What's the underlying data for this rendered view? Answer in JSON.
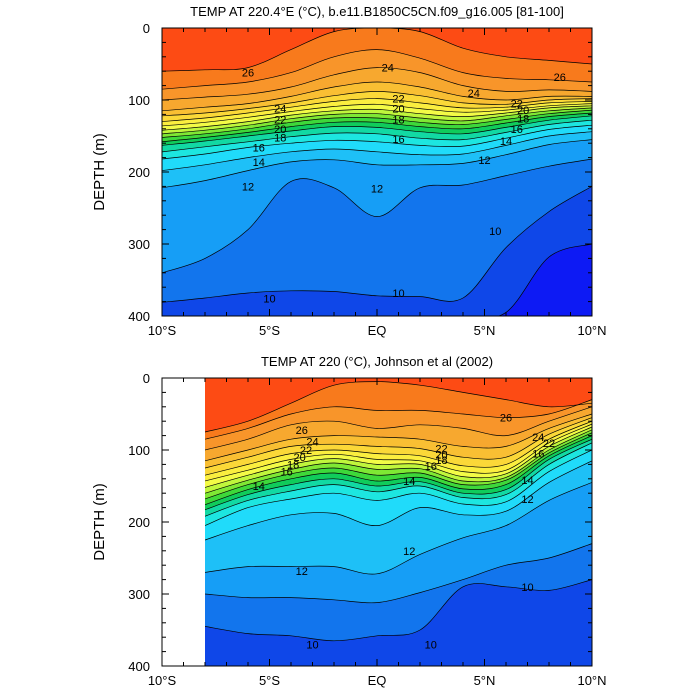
{
  "chart_data": [
    {
      "type": "contour",
      "title": "TEMP AT 220.4°E (°C), b.e11.B1850C5CN.f09_g16.005 [81-100]",
      "xlabel": "",
      "ylabel": "DEPTH (m)",
      "xlim": [
        -10,
        10
      ],
      "ylim": [
        400,
        0
      ],
      "data_xlim": [
        -10,
        10
      ],
      "x_ticks": [
        {
          "value": -10,
          "label": "10°S"
        },
        {
          "value": -5,
          "label": "5°S"
        },
        {
          "value": 0,
          "label": "EQ"
        },
        {
          "value": 5,
          "label": "5°N"
        },
        {
          "value": 10,
          "label": "10°N"
        }
      ],
      "y_ticks": [
        {
          "value": 0,
          "label": "0"
        },
        {
          "value": 100,
          "label": "100"
        },
        {
          "value": 200,
          "label": "200"
        },
        {
          "value": 300,
          "label": "300"
        },
        {
          "value": 400,
          "label": "400"
        }
      ],
      "isotherm_depths": {
        "lats": [
          -10,
          -8,
          -6,
          -4,
          -2,
          0,
          2,
          4,
          6,
          8,
          10
        ],
        "levels": [
          {
            "value": 27,
            "depth": [
              60,
              58,
              55,
              30,
              5,
              0,
              5,
              28,
              40,
              45,
              50
            ]
          },
          {
            "value": 26,
            "depth": [
              85,
              80,
              75,
              62,
              40,
              30,
              42,
              62,
              70,
              72,
              75
            ]
          },
          {
            "value": 25,
            "depth": [
              100,
              96,
              92,
              82,
              65,
              55,
              62,
              80,
              88,
              86,
              88
            ]
          },
          {
            "value": 24,
            "depth": [
              115,
              110,
              105,
              95,
              82,
              75,
              82,
              95,
              100,
              95,
              95
            ]
          },
          {
            "value": 23,
            "depth": [
              122,
              118,
              112,
              104,
              94,
              88,
              94,
              104,
              106,
              100,
              98
            ]
          },
          {
            "value": 22,
            "depth": [
              130,
              125,
              118,
              110,
              102,
              98,
              104,
              111,
              110,
              104,
              102
            ]
          },
          {
            "value": 21,
            "depth": [
              136,
              131,
              124,
              116,
              109,
              106,
              112,
              117,
              114,
              108,
              105
            ]
          },
          {
            "value": 20,
            "depth": [
              142,
              137,
              130,
              121,
              115,
              113,
              119,
              123,
              118,
              111,
              108
            ]
          },
          {
            "value": 19,
            "depth": [
              147,
              142,
              135,
              126,
              120,
              119,
              125,
              129,
              122,
              115,
              111
            ]
          },
          {
            "value": 18,
            "depth": [
              152,
              147,
              140,
              131,
              125,
              125,
              131,
              134,
              127,
              119,
              114
            ]
          },
          {
            "value": 17,
            "depth": [
              158,
              152,
              145,
              137,
              131,
              131,
              137,
              140,
              132,
              123,
              118
            ]
          },
          {
            "value": 16,
            "depth": [
              163,
              157,
              150,
              143,
              137,
              138,
              144,
              147,
              138,
              128,
              122
            ]
          },
          {
            "value": 15,
            "depth": [
              172,
              165,
              158,
              151,
              146,
              147,
              153,
              155,
              145,
              134,
              128
            ]
          },
          {
            "value": 14,
            "depth": [
              182,
              175,
              166,
              160,
              156,
              158,
              163,
              164,
              153,
              141,
              135
            ]
          },
          {
            "value": 13,
            "depth": [
              198,
              190,
              180,
              172,
              168,
              172,
              176,
              175,
              163,
              150,
              144
            ]
          },
          {
            "value": 12,
            "depth": [
              222,
              212,
              198,
              186,
              183,
              190,
              190,
              188,
              176,
              162,
              155
            ]
          },
          {
            "value": 11,
            "depth": [
              340,
              320,
              280,
              213,
              222,
              262,
              222,
              218,
              205,
              192,
              182
            ]
          },
          {
            "value": 10,
            "depth": [
              381,
              375,
              368,
              365,
              366,
              372,
              373,
              375,
              305,
              255,
              220
            ]
          },
          {
            "value": 9,
            "depth": [
              400,
              400,
              400,
              400,
              400,
              400,
              400,
              400,
              395,
              318,
              300
            ]
          }
        ]
      },
      "contour_labels": [
        {
          "text": "26",
          "lat": -6.0,
          "depth": 62
        },
        {
          "text": "24",
          "lat": 0.5,
          "depth": 55
        },
        {
          "text": "24",
          "lat": 4.5,
          "depth": 90
        },
        {
          "text": "26",
          "lat": 8.5,
          "depth": 68
        },
        {
          "text": "24",
          "lat": -4.5,
          "depth": 112
        },
        {
          "text": "22",
          "lat": -4.5,
          "depth": 127
        },
        {
          "text": "20",
          "lat": -4.5,
          "depth": 140
        },
        {
          "text": "18",
          "lat": -4.5,
          "depth": 152
        },
        {
          "text": "22",
          "lat": 1.0,
          "depth": 98
        },
        {
          "text": "20",
          "lat": 1.0,
          "depth": 112
        },
        {
          "text": "18",
          "lat": 1.0,
          "depth": 127
        },
        {
          "text": "16",
          "lat": 1.0,
          "depth": 154
        },
        {
          "text": "22",
          "lat": 6.5,
          "depth": 105
        },
        {
          "text": "20",
          "lat": 6.8,
          "depth": 114
        },
        {
          "text": "18",
          "lat": 6.8,
          "depth": 126
        },
        {
          "text": "16",
          "lat": 6.5,
          "depth": 140
        },
        {
          "text": "14",
          "lat": 6.0,
          "depth": 157
        },
        {
          "text": "16",
          "lat": -5.5,
          "depth": 166
        },
        {
          "text": "14",
          "lat": -5.5,
          "depth": 186
        },
        {
          "text": "12",
          "lat": -6.0,
          "depth": 220
        },
        {
          "text": "12",
          "lat": 5.0,
          "depth": 183
        },
        {
          "text": "12",
          "lat": 0.0,
          "depth": 223
        },
        {
          "text": "10",
          "lat": 5.5,
          "depth": 282
        },
        {
          "text": "10",
          "lat": -5.0,
          "depth": 376
        },
        {
          "text": "10",
          "lat": 1.0,
          "depth": 368
        }
      ]
    },
    {
      "type": "contour",
      "title": "TEMP AT 220 (°C), Johnson et al (2002)",
      "xlabel": "",
      "ylabel": "DEPTH (m)",
      "xlim": [
        -10,
        10
      ],
      "ylim": [
        400,
        0
      ],
      "data_xlim": [
        -8,
        10
      ],
      "x_ticks": [
        {
          "value": -10,
          "label": "10°S"
        },
        {
          "value": -5,
          "label": "5°S"
        },
        {
          "value": 0,
          "label": "EQ"
        },
        {
          "value": 5,
          "label": "5°N"
        },
        {
          "value": 10,
          "label": "10°N"
        }
      ],
      "y_ticks": [
        {
          "value": 0,
          "label": "0"
        },
        {
          "value": 100,
          "label": "100"
        },
        {
          "value": 200,
          "label": "200"
        },
        {
          "value": 300,
          "label": "300"
        },
        {
          "value": 400,
          "label": "400"
        }
      ],
      "isotherm_depths": {
        "lats": [
          -8,
          -6,
          -4,
          -2,
          0,
          2,
          4,
          6,
          8,
          10
        ],
        "levels": [
          {
            "value": 27,
            "depth": [
              75,
              60,
              35,
              10,
              5,
              10,
              20,
              30,
              40,
              35
            ]
          },
          {
            "value": 26,
            "depth": [
              85,
              70,
              50,
              40,
              45,
              45,
              50,
              55,
              50,
              30
            ]
          },
          {
            "value": 25,
            "depth": [
              100,
              85,
              65,
              60,
              70,
              65,
              70,
              80,
              60,
              40
            ]
          },
          {
            "value": 24,
            "depth": [
              115,
              100,
              85,
              80,
              82,
              85,
              95,
              95,
              70,
              50
            ]
          },
          {
            "value": 23,
            "depth": [
              125,
              110,
              95,
              92,
              95,
              98,
              110,
              110,
              78,
              55
            ]
          },
          {
            "value": 22,
            "depth": [
              135,
              120,
              105,
              100,
              105,
              108,
              122,
              120,
              85,
              60
            ]
          },
          {
            "value": 21,
            "depth": [
              143,
              128,
              113,
              106,
              113,
              115,
              130,
              128,
              90,
              64
            ]
          },
          {
            "value": 20,
            "depth": [
              152,
              135,
              120,
              112,
              120,
              120,
              137,
              133,
              95,
              68
            ]
          },
          {
            "value": 19,
            "depth": [
              160,
              142,
              127,
              118,
              127,
              126,
              143,
              138,
              100,
              72
            ]
          },
          {
            "value": 18,
            "depth": [
              168,
              148,
              133,
              125,
              135,
              132,
              148,
              142,
              104,
              76
            ]
          },
          {
            "value": 17,
            "depth": [
              176,
              155,
              140,
              132,
              143,
              138,
              154,
              148,
              108,
              80
            ]
          },
          {
            "value": 16,
            "depth": [
              183,
              162,
              148,
              140,
              150,
              144,
              160,
              155,
              113,
              85
            ]
          },
          {
            "value": 15,
            "depth": [
              192,
              170,
              157,
              148,
              158,
              150,
              166,
              162,
              120,
              90
            ]
          },
          {
            "value": 14,
            "depth": [
              205,
              180,
              168,
              160,
              170,
              160,
              175,
              172,
              130,
              100
            ]
          },
          {
            "value": 13,
            "depth": [
              225,
              205,
              190,
              188,
              205,
              180,
              190,
              185,
              145,
              115
            ]
          },
          {
            "value": 12,
            "depth": [
              270,
              262,
              262,
              262,
              272,
              245,
              222,
              205,
              170,
              145
            ]
          },
          {
            "value": 11,
            "depth": [
              300,
              305,
              305,
              308,
              312,
              298,
              280,
              260,
              250,
              230
            ]
          },
          {
            "value": 10,
            "depth": [
              345,
              355,
              358,
              365,
              358,
              350,
              290,
              290,
              295,
              280
            ]
          },
          {
            "value": 9,
            "depth": [
              400,
              400,
              400,
              400,
              400,
              400,
              400,
              400,
              400,
              400
            ]
          }
        ]
      },
      "contour_labels": [
        {
          "text": "26",
          "lat": -3.5,
          "depth": 72
        },
        {
          "text": "24",
          "lat": -3.0,
          "depth": 88
        },
        {
          "text": "22",
          "lat": -3.3,
          "depth": 100
        },
        {
          "text": "20",
          "lat": -3.6,
          "depth": 110
        },
        {
          "text": "18",
          "lat": -3.9,
          "depth": 120
        },
        {
          "text": "16",
          "lat": -4.2,
          "depth": 130
        },
        {
          "text": "14",
          "lat": -5.5,
          "depth": 150
        },
        {
          "text": "26",
          "lat": 6.0,
          "depth": 55
        },
        {
          "text": "22",
          "lat": 3.0,
          "depth": 98
        },
        {
          "text": "20",
          "lat": 3.0,
          "depth": 106
        },
        {
          "text": "18",
          "lat": 3.0,
          "depth": 114
        },
        {
          "text": "16",
          "lat": 2.5,
          "depth": 122
        },
        {
          "text": "14",
          "lat": 1.5,
          "depth": 143
        },
        {
          "text": "24",
          "lat": 7.5,
          "depth": 82
        },
        {
          "text": "22",
          "lat": 8.0,
          "depth": 90
        },
        {
          "text": "16",
          "lat": 7.5,
          "depth": 105
        },
        {
          "text": "14",
          "lat": 7.0,
          "depth": 142
        },
        {
          "text": "12",
          "lat": 7.0,
          "depth": 168
        },
        {
          "text": "12",
          "lat": 1.5,
          "depth": 240
        },
        {
          "text": "12",
          "lat": -3.5,
          "depth": 268
        },
        {
          "text": "10",
          "lat": 7.0,
          "depth": 290
        },
        {
          "text": "10",
          "lat": -3.0,
          "depth": 370
        },
        {
          "text": "10",
          "lat": 2.5,
          "depth": 370
        }
      ]
    }
  ],
  "palette": {
    "levels_hot_to_cold": [
      "#fd4b14",
      "#f87a1c",
      "#f8952a",
      "#f7a82f",
      "#f9bf33",
      "#fbd838",
      "#fbee3f",
      "#f3fb46",
      "#c0f63c",
      "#7fe834",
      "#3ed83a",
      "#10cc5b",
      "#12d9a3",
      "#1de6e0",
      "#20dbfa",
      "#1ec0f7",
      "#169ef6",
      "#1275ed",
      "#0f47e8",
      "#0d1af4"
    ],
    "contour_line": "#000000",
    "background": "#ffffff"
  }
}
